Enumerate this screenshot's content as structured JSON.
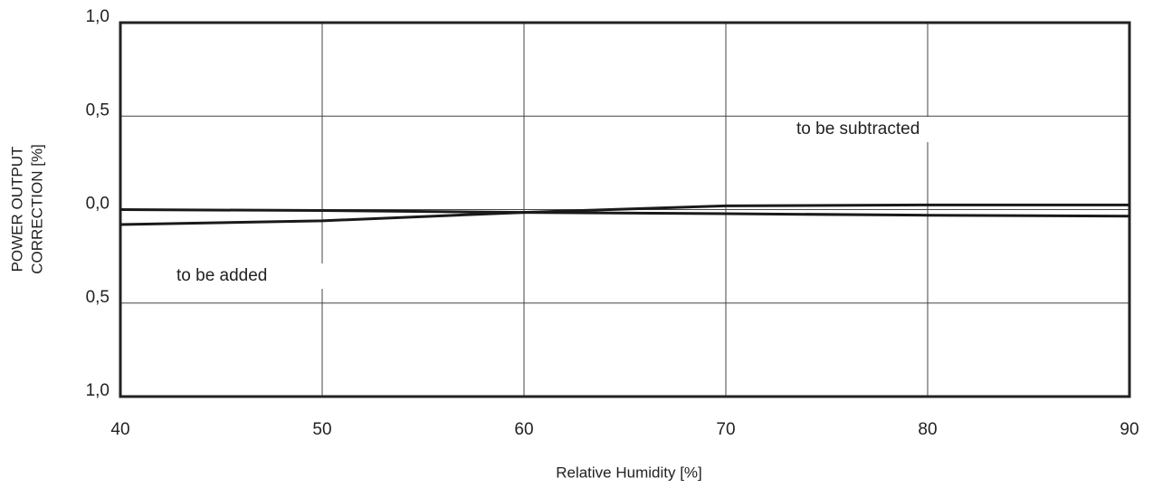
{
  "chart_data": {
    "type": "line",
    "x_label": "Relative Humidity [%]",
    "y_label": [
      "POWER OUTPUT",
      "CORRECTION [%]"
    ],
    "x": [
      40,
      50,
      60,
      70,
      80,
      90
    ],
    "series": [
      {
        "color": "#1a1a1a",
        "values": [
          0.0,
          -0.005,
          -0.015,
          -0.022,
          -0.03,
          -0.035
        ]
      },
      {
        "color": "#1a1a1a",
        "values": [
          -0.08,
          -0.06,
          -0.015,
          0.02,
          0.025,
          0.025
        ]
      }
    ],
    "xlim": [
      40,
      90
    ],
    "xticks": [
      40,
      50,
      60,
      70,
      80,
      90
    ],
    "ylim": [
      -1,
      1
    ],
    "yticks": [
      {
        "value": 1,
        "label": "1,0"
      },
      {
        "value": 0.5,
        "label": "0,5"
      },
      {
        "value": 0,
        "label": "0,0"
      },
      {
        "value": -0.5,
        "label": "0,5"
      },
      {
        "value": -1,
        "label": "1,0"
      }
    ],
    "grid": true,
    "annotations": [
      "to be subtracted",
      "to be added"
    ]
  }
}
